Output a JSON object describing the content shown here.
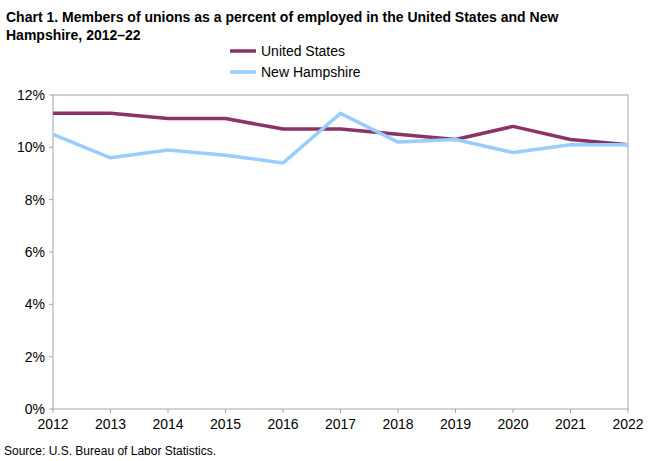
{
  "chart_data": {
    "type": "line",
    "title": "Chart 1. Members of unions as a percent of employed in the United States and New Hampshire, 2012–22",
    "source": "Source: U.S. Bureau of Labor Statistics.",
    "x": [
      2012,
      2013,
      2014,
      2015,
      2016,
      2017,
      2018,
      2019,
      2020,
      2021,
      2022
    ],
    "xlim": [
      2012,
      2022
    ],
    "xticks": [
      2012,
      2013,
      2014,
      2015,
      2016,
      2017,
      2018,
      2019,
      2020,
      2021,
      2022
    ],
    "ylim": [
      0,
      12
    ],
    "yticks": [
      {
        "value": 0,
        "label": "0%"
      },
      {
        "value": 2,
        "label": "2%"
      },
      {
        "value": 4,
        "label": "4%"
      },
      {
        "value": 6,
        "label": "6%"
      },
      {
        "value": 8,
        "label": "8%"
      },
      {
        "value": 10,
        "label": "10%"
      },
      {
        "value": 12,
        "label": "12%"
      }
    ],
    "grid": false,
    "legend": "top",
    "series": [
      {
        "name": "United States",
        "color": "#8b3366",
        "values": [
          11.3,
          11.3,
          11.1,
          11.1,
          10.7,
          10.7,
          10.5,
          10.3,
          10.8,
          10.3,
          10.1
        ]
      },
      {
        "name": "New Hampshire",
        "color": "#99ccff",
        "values": [
          10.5,
          9.6,
          9.9,
          9.7,
          9.4,
          11.3,
          10.2,
          10.3,
          9.8,
          10.1,
          10.1
        ]
      }
    ]
  }
}
